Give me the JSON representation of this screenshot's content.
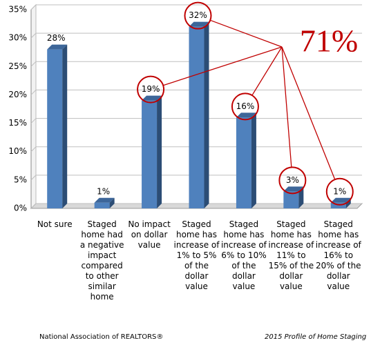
{
  "chart_data": {
    "type": "bar",
    "categories": [
      "Not sure",
      "Staged home had a negative impact compared to other similar home",
      "No impact on dollar value",
      "Staged home has increase of 1% to 5% of the dollar value",
      "Staged home has increase of 6% to 10% of the dollar value",
      "Staged home has increase of 11% to 15% of the dollar value",
      "Staged home has increase of 16% to 20% of the dollar value"
    ],
    "values": [
      28,
      1,
      19,
      32,
      16,
      3,
      1
    ],
    "value_labels": [
      "28%",
      "1%",
      "19%",
      "32%",
      "16%",
      "3%",
      "1%"
    ],
    "color": "#4f81bd",
    "ylim": [
      0,
      35
    ],
    "yticks": [
      {
        "value": 0,
        "label": "0%"
      },
      {
        "value": 5,
        "label": "5%"
      },
      {
        "value": 10,
        "label": "10%"
      },
      {
        "value": 15,
        "label": "15%"
      },
      {
        "value": 20,
        "label": "20%"
      },
      {
        "value": 25,
        "label": "25%"
      },
      {
        "value": 30,
        "label": "30%"
      },
      {
        "value": 35,
        "label": "35%"
      }
    ],
    "grid": true,
    "highlight_indices": [
      2,
      3,
      4,
      5,
      6
    ],
    "annotation": "71%",
    "source": "National Association of REALTORS®",
    "note": "2015 Profile of Home Staging"
  }
}
